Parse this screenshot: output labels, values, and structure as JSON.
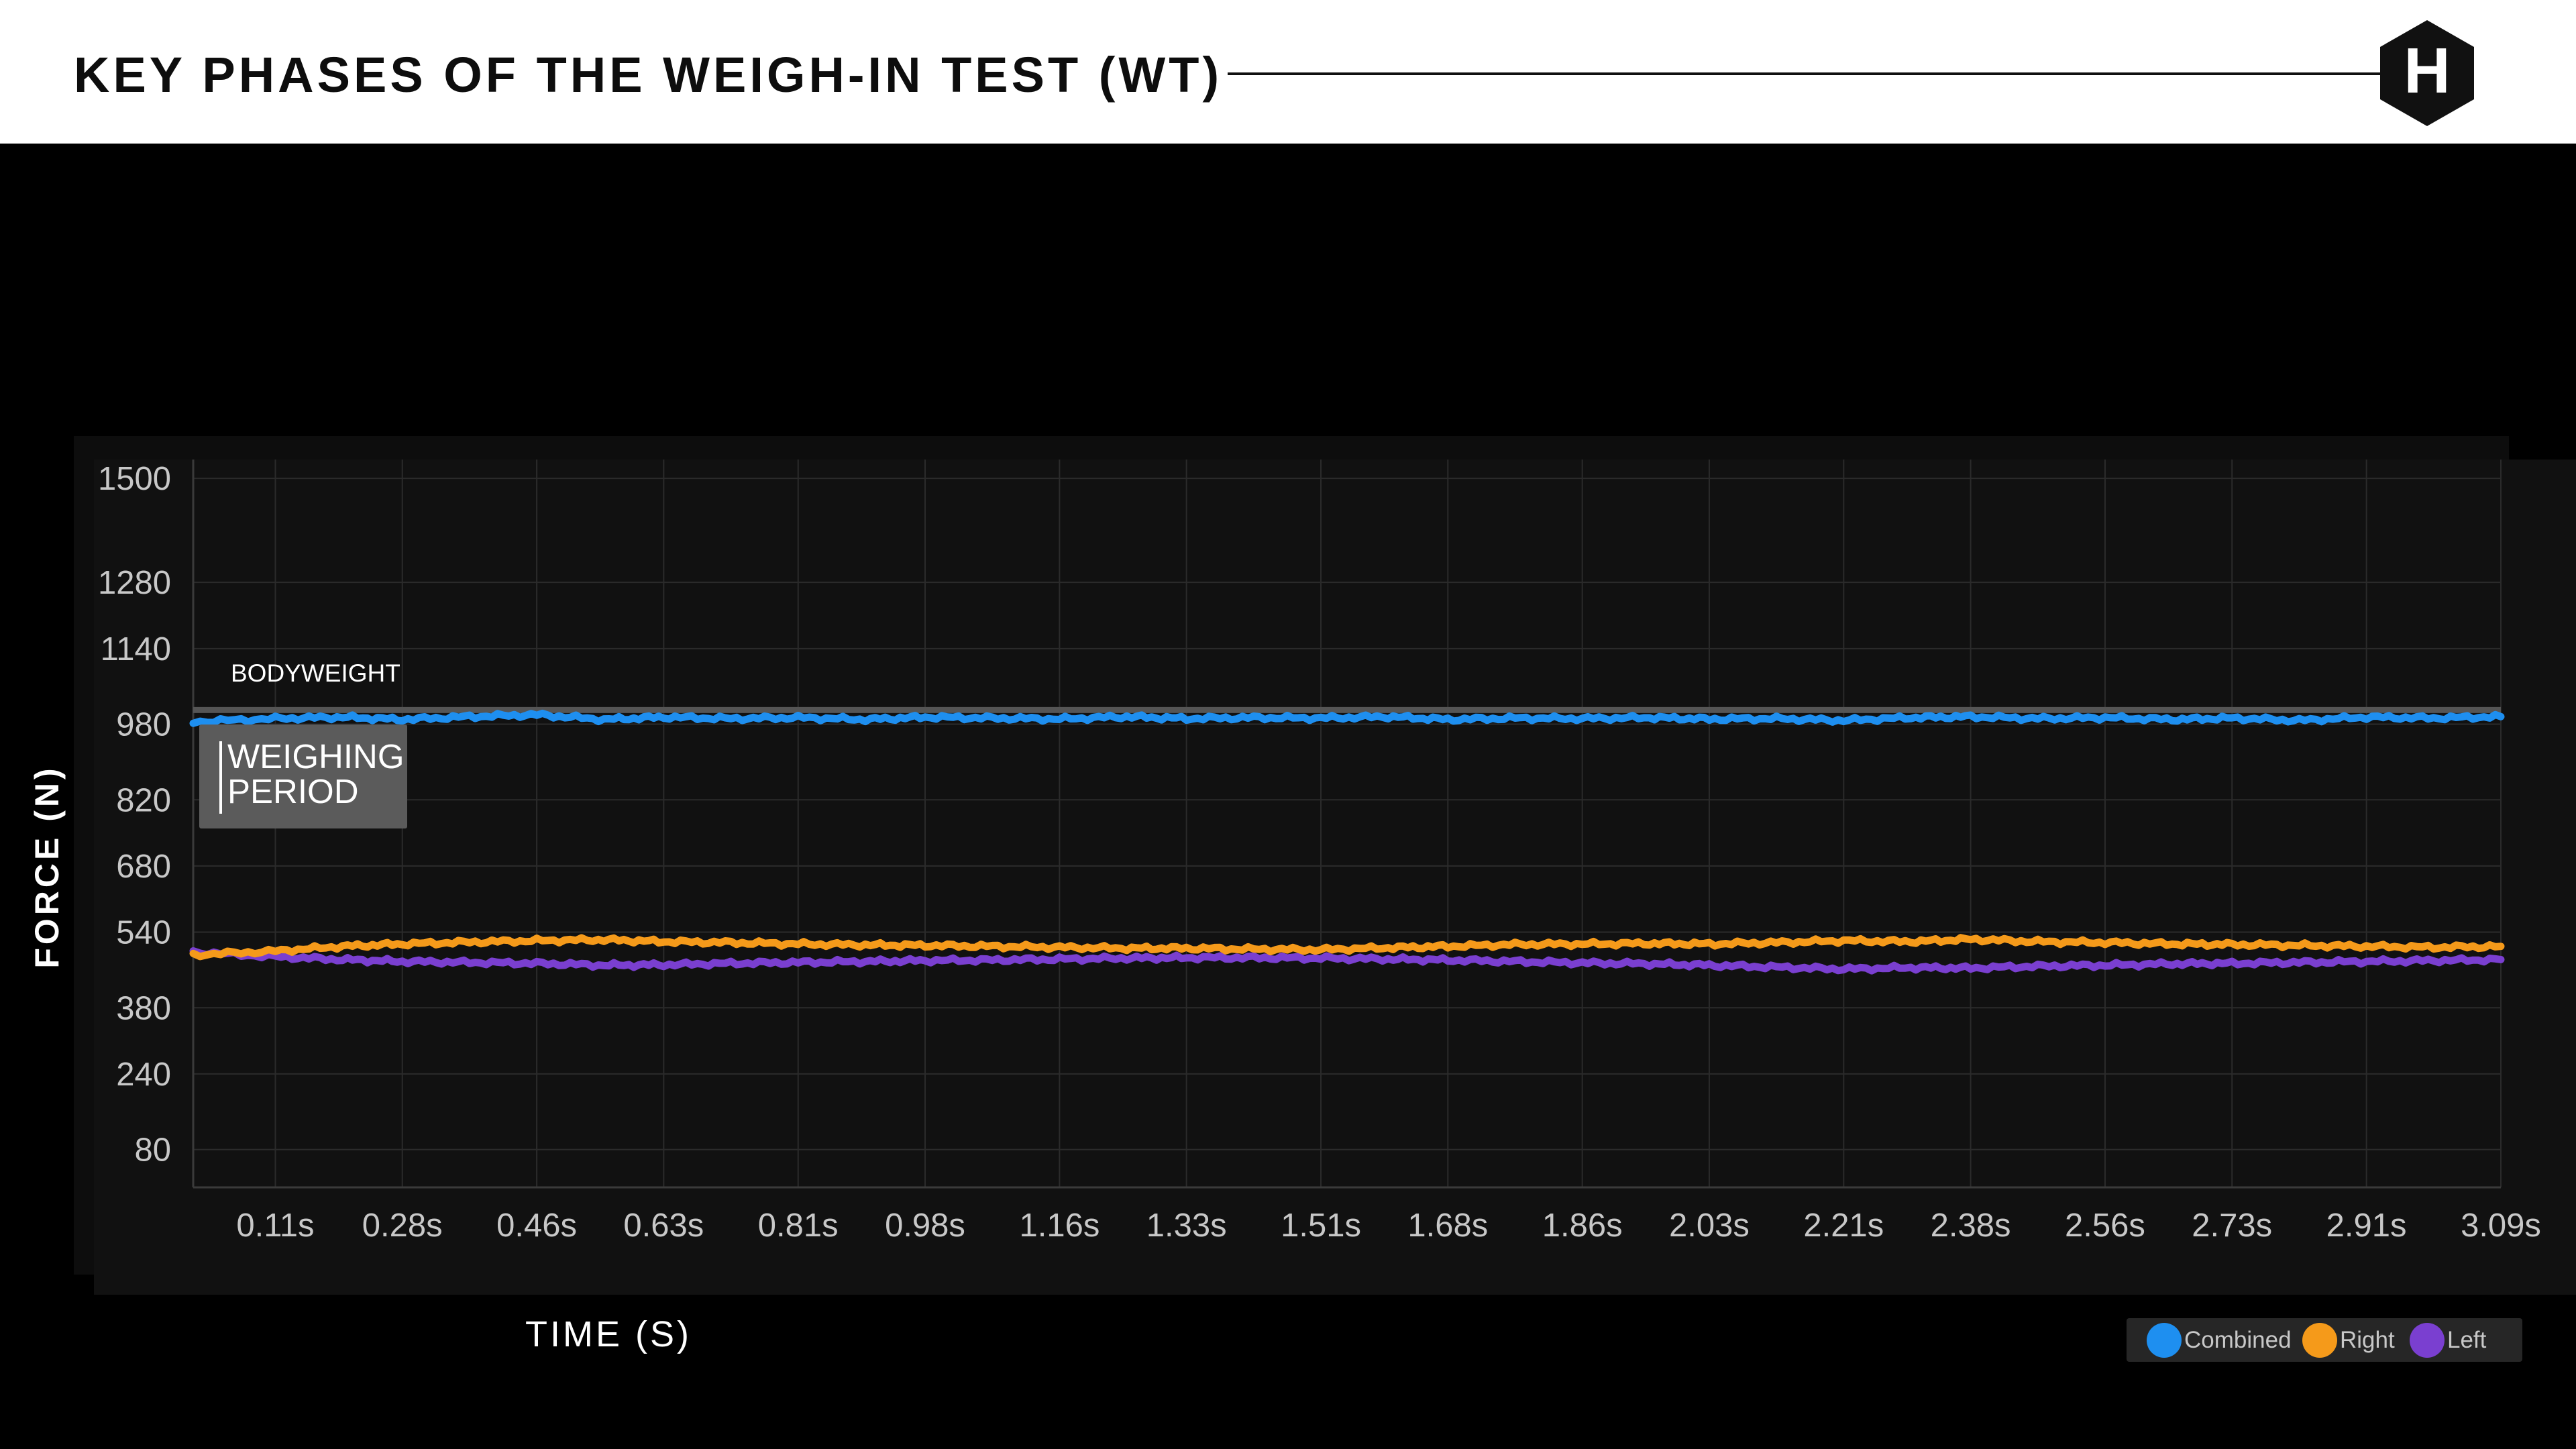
{
  "header": {
    "title": "KEY PHASES OF THE WEIGH-IN TEST (WT)",
    "logo_letter": "H"
  },
  "annotations": {
    "bodyweight_label": "BODYWEIGHT",
    "weighing_period_label": "WEIGHING\nPERIOD"
  },
  "legend": {
    "items": [
      {
        "label": "Combined",
        "color": "#1e8ff0"
      },
      {
        "label": "Right",
        "color": "#f59a1a"
      },
      {
        "label": "Left",
        "color": "#7a3fd0"
      }
    ]
  },
  "colors": {
    "combined": "#1e8ff0",
    "right": "#f59a1a",
    "left": "#7a3fd0",
    "bodyweight_line": "#555555",
    "grid": "#2b2b2b"
  },
  "chart_data": {
    "type": "line",
    "xlabel": "TIME (S)",
    "ylabel": "FORCE (N)",
    "title": "",
    "grid": true,
    "legend_position": "bottom-right",
    "xlim": [
      0,
      3.09
    ],
    "ylim": [
      0,
      1540
    ],
    "x_ticks": [
      "0.11s",
      "0.28s",
      "0.46s",
      "0.63s",
      "0.81s",
      "0.98s",
      "1.16s",
      "1.33s",
      "1.51s",
      "1.68s",
      "1.86s",
      "2.03s",
      "2.21s",
      "2.38s",
      "2.56s",
      "2.73s",
      "2.91s",
      "3.09s"
    ],
    "y_ticks": [
      80,
      240,
      380,
      540,
      680,
      820,
      980,
      1140,
      1280,
      1500
    ],
    "reference_lines": [
      {
        "label": "BODYWEIGHT",
        "y": 1010
      }
    ],
    "series": [
      {
        "name": "Combined",
        "x": [
          0.0,
          0.11,
          0.2,
          0.28,
          0.37,
          0.46,
          0.55,
          0.63,
          0.72,
          0.81,
          0.9,
          0.98,
          1.07,
          1.16,
          1.25,
          1.33,
          1.42,
          1.51,
          1.6,
          1.68,
          1.77,
          1.86,
          1.95,
          2.03,
          2.12,
          2.21,
          2.3,
          2.38,
          2.47,
          2.56,
          2.65,
          2.73,
          2.82,
          2.91,
          3.0,
          3.09
        ],
        "y": [
          985,
          992,
          995,
          990,
          996,
          1000,
          990,
          995,
          992,
          994,
          990,
          995,
          993,
          991,
          996,
          992,
          994,
          993,
          996,
          990,
          993,
          992,
          994,
          991,
          992,
          988,
          994,
          996,
          992,
          994,
          990,
          993,
          988,
          995,
          993,
          996
        ]
      },
      {
        "name": "Right",
        "x": [
          0.0,
          0.11,
          0.2,
          0.28,
          0.37,
          0.46,
          0.55,
          0.63,
          0.72,
          0.81,
          0.9,
          0.98,
          1.07,
          1.16,
          1.25,
          1.33,
          1.42,
          1.51,
          1.6,
          1.68,
          1.77,
          1.86,
          1.95,
          2.03,
          2.12,
          2.21,
          2.3,
          2.38,
          2.47,
          2.56,
          2.65,
          2.73,
          2.82,
          2.91,
          3.0,
          3.09
        ],
        "y": [
          492,
          500,
          510,
          515,
          519,
          522,
          524,
          520,
          518,
          515,
          513,
          512,
          510,
          508,
          506,
          506,
          504,
          503,
          507,
          510,
          514,
          515,
          516,
          515,
          518,
          522,
          520,
          525,
          520,
          518,
          515,
          514,
          512,
          510,
          508,
          510
        ]
      },
      {
        "name": "Left",
        "x": [
          0.0,
          0.11,
          0.2,
          0.28,
          0.37,
          0.46,
          0.55,
          0.63,
          0.72,
          0.81,
          0.9,
          0.98,
          1.07,
          1.16,
          1.25,
          1.33,
          1.42,
          1.51,
          1.6,
          1.68,
          1.77,
          1.86,
          1.95,
          2.03,
          2.12,
          2.21,
          2.3,
          2.38,
          2.47,
          2.56,
          2.65,
          2.73,
          2.82,
          2.91,
          3.0,
          3.09
        ],
        "y": [
          498,
          488,
          482,
          478,
          476,
          474,
          470,
          471,
          474,
          476,
          478,
          480,
          481,
          483,
          485,
          486,
          486,
          485,
          483,
          481,
          478,
          475,
          473,
          470,
          466,
          462,
          465,
          464,
          468,
          470,
          473,
          474,
          476,
          478,
          480,
          482
        ]
      }
    ]
  }
}
